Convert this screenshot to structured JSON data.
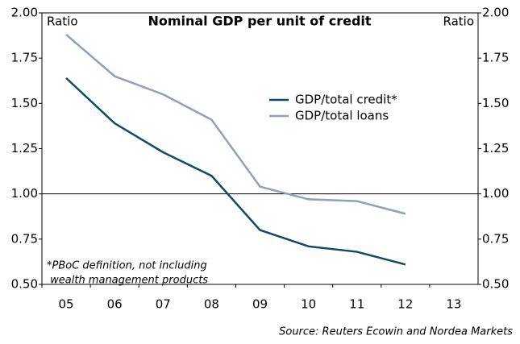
{
  "chart_data": {
    "type": "line",
    "title": "Nominal GDP per unit of credit",
    "y_label": "Ratio",
    "y2_label": "Ratio",
    "categories": [
      "05",
      "06",
      "07",
      "08",
      "09",
      "10",
      "11",
      "12",
      "13"
    ],
    "series": [
      {
        "name": "GDP/total credit*",
        "color": "#0d4a6e",
        "values": [
          1.64,
          1.39,
          1.23,
          1.1,
          0.8,
          0.71,
          0.68,
          0.61,
          null
        ]
      },
      {
        "name": "GDP/total loans",
        "color": "#8aa2bb",
        "values": [
          1.88,
          1.65,
          1.55,
          1.41,
          1.04,
          0.97,
          0.96,
          0.89,
          null
        ]
      }
    ],
    "ylim": [
      0.5,
      2.0
    ],
    "yticks": [
      {
        "value": 0.5,
        "label": "0.50"
      },
      {
        "value": 0.75,
        "label": "0.75"
      },
      {
        "value": 1.0,
        "label": "1.00"
      },
      {
        "value": 1.25,
        "label": "1.25"
      },
      {
        "value": 1.5,
        "label": "1.50"
      },
      {
        "value": 1.75,
        "label": "1.75"
      },
      {
        "value": 2.0,
        "label": "2.00"
      }
    ],
    "y2lim": [
      0.5,
      2.0
    ],
    "y2ticks": [
      {
        "value": 0.5,
        "label": "0.50"
      },
      {
        "value": 0.75,
        "label": "0.75"
      },
      {
        "value": 1.0,
        "label": "1.00"
      },
      {
        "value": 1.25,
        "label": "1.25"
      },
      {
        "value": 1.5,
        "label": "1.50"
      },
      {
        "value": 1.75,
        "label": "1.75"
      },
      {
        "value": 2.0,
        "label": "2.00"
      }
    ],
    "reference_line": 1.0,
    "note": [
      "*PBoC definition, not including",
      " wealth management products"
    ],
    "source": "Source: Reuters Ecowin and Nordea Markets",
    "legend": "center-right"
  }
}
